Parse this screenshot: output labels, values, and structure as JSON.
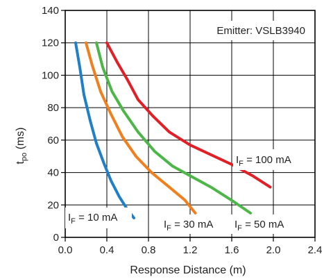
{
  "chart_data": {
    "type": "line",
    "title": "",
    "xlabel": "Response Distance (m)",
    "ylabel_main": "t",
    "ylabel_sub": "po",
    "ylabel_unit": " (ms)",
    "xlim": [
      0,
      2.4
    ],
    "ylim": [
      0,
      140
    ],
    "xticks": [
      0,
      0.4,
      0.8,
      1.2,
      1.6,
      2.0,
      2.4
    ],
    "xtick_labels": [
      "0.0",
      "0.4",
      "0.8",
      "1.2",
      "1.6",
      "2.0",
      "2.4"
    ],
    "yticks": [
      0,
      20,
      40,
      60,
      80,
      100,
      120,
      140
    ],
    "ytick_labels": [
      "0",
      "20",
      "40",
      "60",
      "80",
      "100",
      "120",
      "140"
    ],
    "grid": true,
    "emitter_label": "Emitter: VSLB3940",
    "series": [
      {
        "label_main": "I",
        "label_sub": "F",
        "label_value": " = 10 mA",
        "color": "#1f7fc7",
        "x": [
          0.1,
          0.14,
          0.18,
          0.24,
          0.3,
          0.37,
          0.44,
          0.52,
          0.6,
          0.66
        ],
        "y": [
          120,
          105,
          88,
          72,
          58,
          46,
          35,
          25,
          17,
          12
        ]
      },
      {
        "label_main": "I",
        "label_sub": "F",
        "label_value": " = 30 mA",
        "color": "#f07f1e",
        "x": [
          0.2,
          0.26,
          0.34,
          0.44,
          0.55,
          0.68,
          0.83,
          1.0,
          1.15,
          1.25
        ],
        "y": [
          120,
          106,
          90,
          76,
          62,
          50,
          40,
          31,
          23,
          15
        ]
      },
      {
        "label_main": "I",
        "label_sub": "F",
        "label_value": " = 50 mA",
        "color": "#4cb648",
        "x": [
          0.3,
          0.36,
          0.45,
          0.56,
          0.7,
          0.86,
          1.03,
          1.2,
          1.4,
          1.62,
          1.78
        ],
        "y": [
          120,
          105,
          90,
          78,
          65,
          53,
          44,
          38,
          31,
          22,
          15
        ]
      },
      {
        "label_main": "I",
        "label_sub": "F",
        "label_value": " = 100 mA",
        "color": "#e01f26",
        "x": [
          0.4,
          0.5,
          0.6,
          0.7,
          0.84,
          1.0,
          1.2,
          1.4,
          1.6,
          1.8,
          1.97
        ],
        "y": [
          120,
          108,
          97,
          85,
          75,
          65,
          57,
          51,
          45,
          38,
          31
        ]
      }
    ]
  }
}
